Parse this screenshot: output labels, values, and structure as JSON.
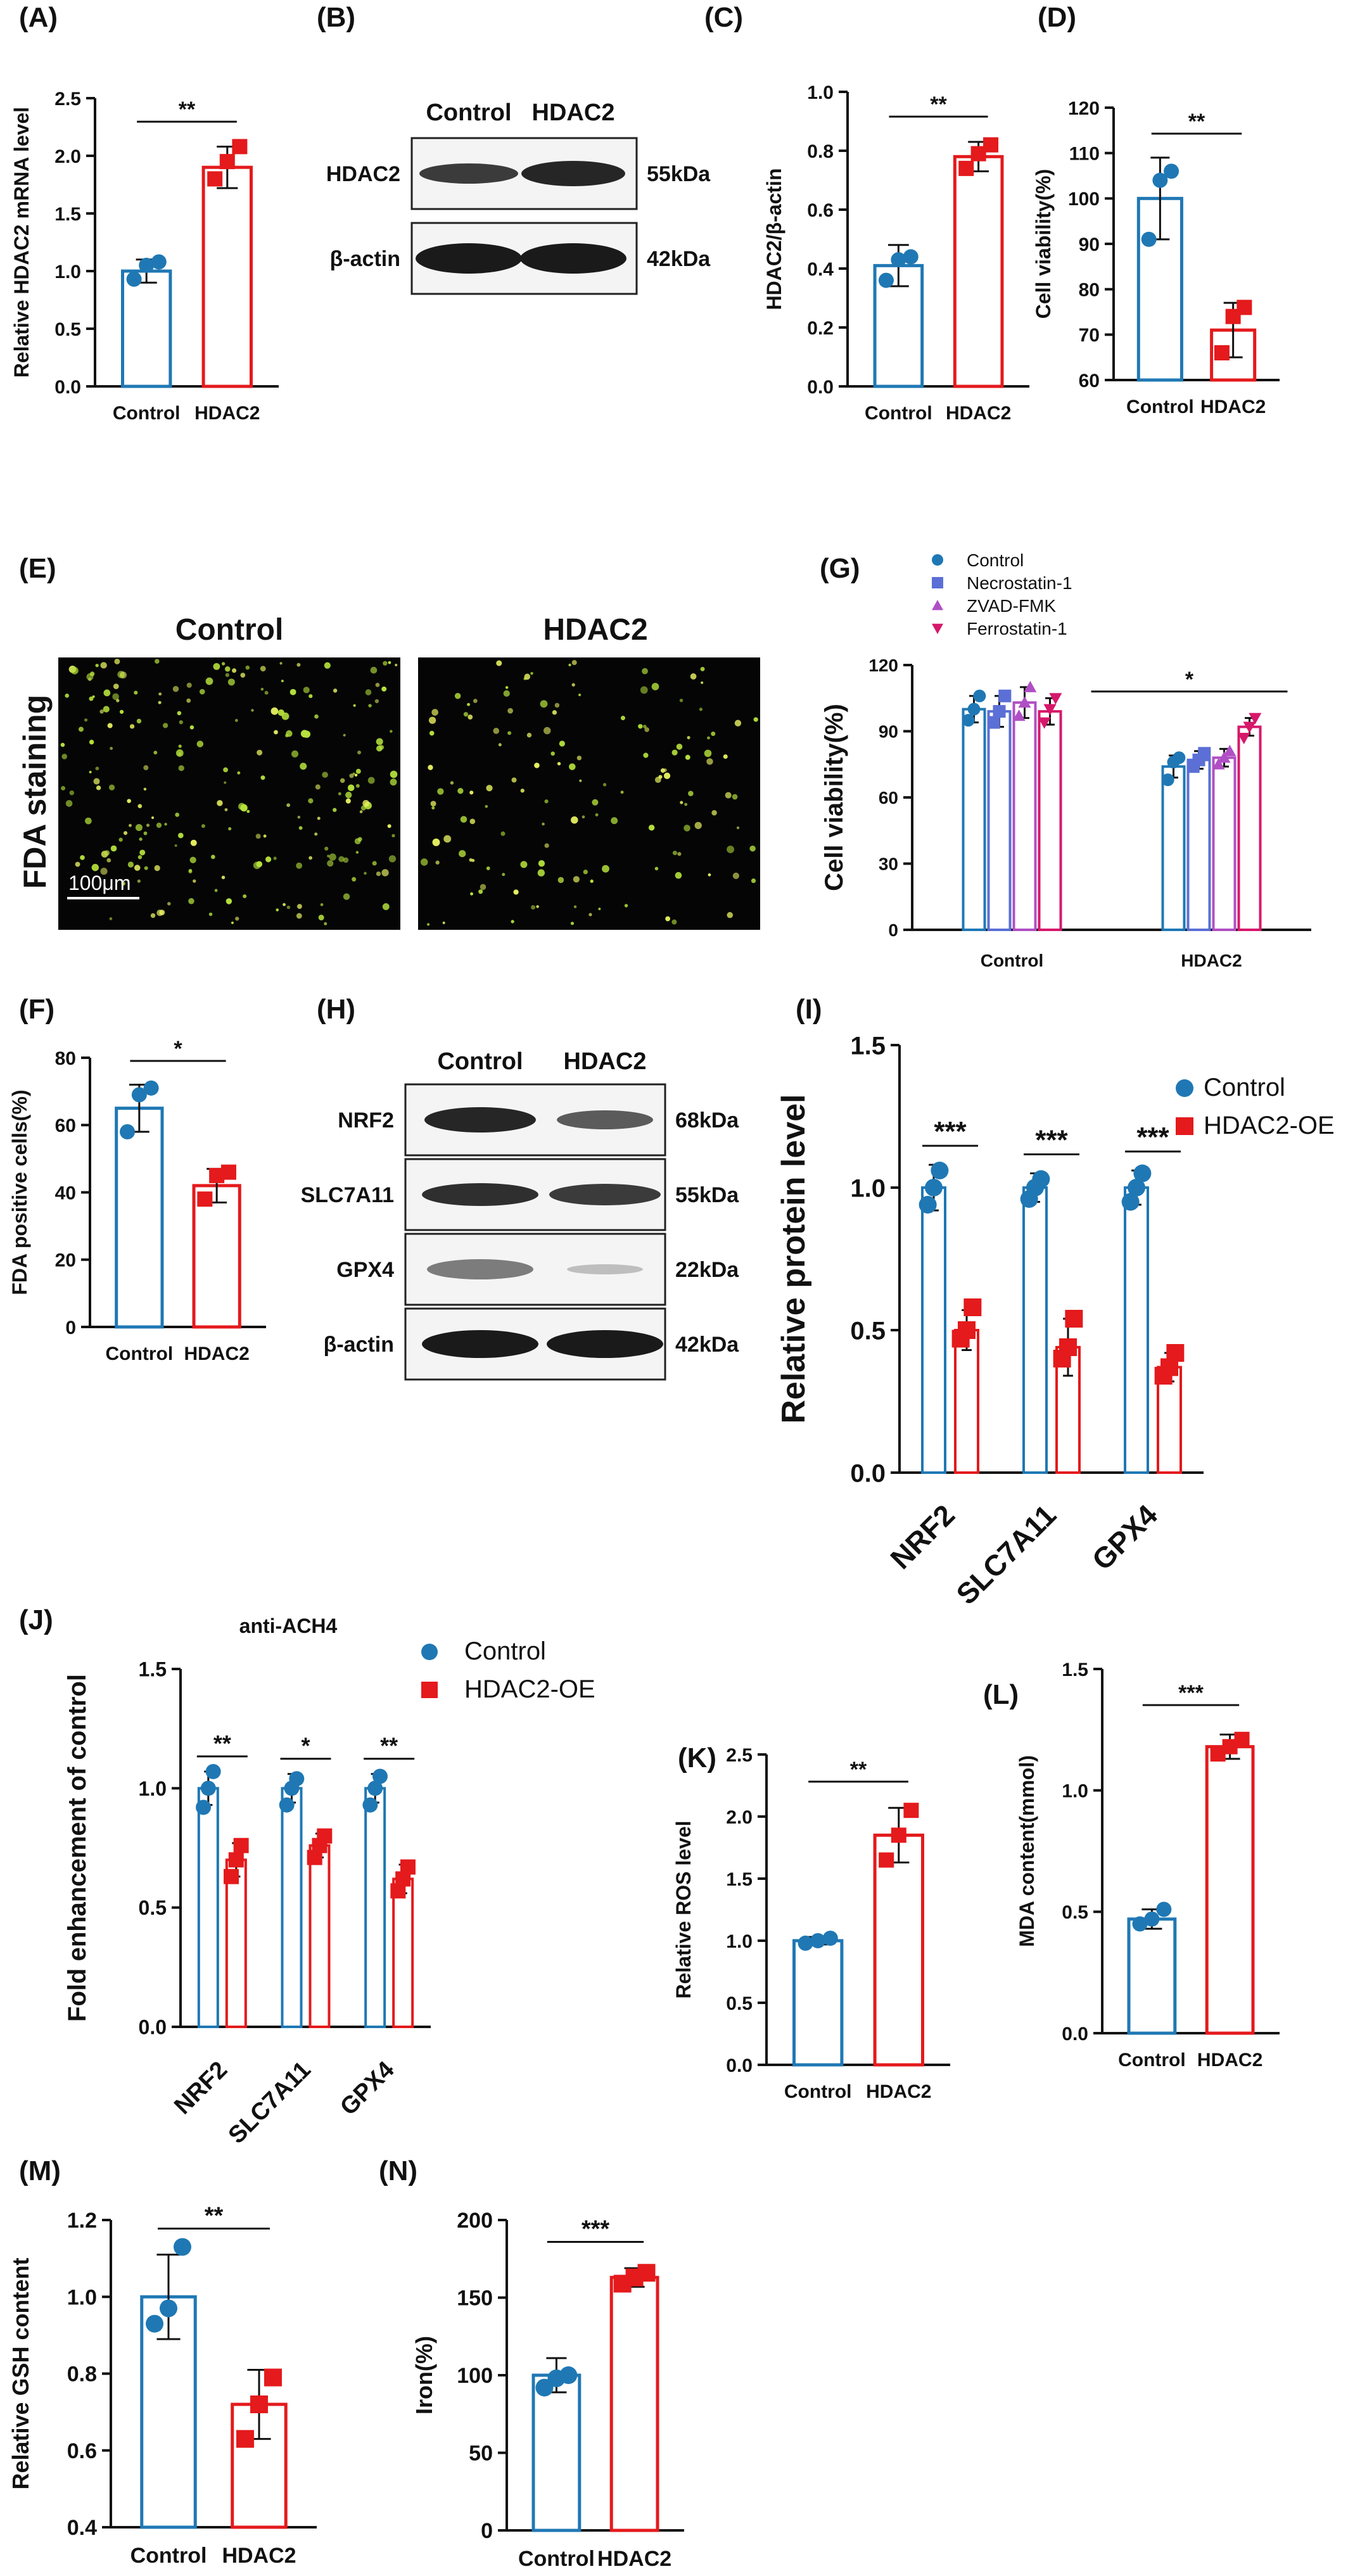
{
  "colors": {
    "control": "#1f78b4",
    "hdac2": "#e41a1c",
    "necrostatin": "#5b6fd6",
    "zvad": "#b04fc4",
    "ferrostatin": "#d6186a"
  },
  "chart_data": [
    {
      "panel": "(A)",
      "type": "bar",
      "ylabel": "Relative HDAC2 mRNA level",
      "ylim": [
        0,
        2.5
      ],
      "yticks": [
        "0.0",
        "0.5",
        "1.0",
        "1.5",
        "2.0",
        "2.5"
      ],
      "categories": [
        "Control",
        "HDAC2"
      ],
      "values": [
        1.0,
        1.9
      ],
      "errors": [
        0.1,
        0.18
      ],
      "points": [
        [
          0.93,
          1.05,
          1.08
        ],
        [
          1.8,
          1.95,
          2.08
        ]
      ],
      "significance": "**"
    },
    {
      "panel": "(C)",
      "type": "bar",
      "ylabel": "HDAC2/β-actin",
      "ylim": [
        0,
        1.0
      ],
      "yticks": [
        "0.0",
        "0.2",
        "0.4",
        "0.6",
        "0.8",
        "1.0"
      ],
      "categories": [
        "Control",
        "HDAC2"
      ],
      "values": [
        0.41,
        0.78
      ],
      "errors": [
        0.07,
        0.05
      ],
      "points": [
        [
          0.36,
          0.43,
          0.44
        ],
        [
          0.74,
          0.79,
          0.82
        ]
      ],
      "significance": "**"
    },
    {
      "panel": "(D)",
      "type": "bar",
      "ylabel": "Cell viability(%)",
      "ylim": [
        60,
        120
      ],
      "yticks": [
        "60",
        "70",
        "80",
        "90",
        "100",
        "110",
        "120"
      ],
      "categories": [
        "Control",
        "HDAC2"
      ],
      "values": [
        100,
        71
      ],
      "errors": [
        9,
        6
      ],
      "points": [
        [
          91,
          104,
          106
        ],
        [
          66,
          74,
          76
        ]
      ],
      "significance": "**"
    },
    {
      "panel": "(F)",
      "type": "bar",
      "ylabel": "FDA positive cells(%)",
      "ylim": [
        0,
        80
      ],
      "yticks": [
        "0",
        "20",
        "40",
        "60",
        "80"
      ],
      "categories": [
        "Control",
        "HDAC2"
      ],
      "values": [
        65,
        42
      ],
      "errors": [
        7,
        5
      ],
      "points": [
        [
          58,
          69,
          71
        ],
        [
          38,
          45,
          46
        ]
      ],
      "significance": "*"
    },
    {
      "panel": "(G)",
      "type": "bar",
      "ylabel": "Cell viability(%)",
      "ylim": [
        0,
        120
      ],
      "yticks": [
        "0",
        "30",
        "60",
        "90",
        "120"
      ],
      "categories": [
        "Control",
        "HDAC2"
      ],
      "series": [
        {
          "name": "Control",
          "values": [
            100,
            74
          ],
          "errors": [
            6,
            5
          ],
          "points": [
            [
              95,
              100,
              106
            ],
            [
              68,
              76,
              78
            ]
          ]
        },
        {
          "name": "Necrostatin-1",
          "values": [
            99,
            77
          ],
          "errors": [
            7,
            4
          ],
          "points": [
            [
              94,
              99,
              106
            ],
            [
              74,
              77,
              80
            ]
          ]
        },
        {
          "name": "ZVAD-FMK",
          "values": [
            103,
            78
          ],
          "errors": [
            7,
            4
          ],
          "points": [
            [
              97,
              103,
              110
            ],
            [
              75,
              78,
              81
            ]
          ]
        },
        {
          "name": "Ferrostatin-1",
          "values": [
            99,
            92
          ],
          "errors": [
            6,
            4
          ],
          "points": [
            [
              94,
              100,
              105
            ],
            [
              87,
              92,
              96
            ]
          ]
        }
      ],
      "significance": "*"
    },
    {
      "panel": "(I)",
      "type": "bar",
      "ylabel": "Relative protein level",
      "ylim": [
        0,
        1.5
      ],
      "yticks": [
        "0.0",
        "0.5",
        "1.0",
        "1.5"
      ],
      "categories": [
        "NRF2",
        "SLC7A11",
        "GPX4"
      ],
      "series": [
        {
          "name": "Control",
          "values": [
            1.0,
            1.0,
            1.0
          ],
          "errors": [
            0.08,
            0.05,
            0.06
          ],
          "points": [
            [
              0.94,
              1.0,
              1.06
            ],
            [
              0.96,
              1.0,
              1.03
            ],
            [
              0.95,
              1.0,
              1.05
            ]
          ]
        },
        {
          "name": "HDAC2-OE",
          "values": [
            0.5,
            0.44,
            0.37
          ],
          "errors": [
            0.07,
            0.1,
            0.05
          ],
          "points": [
            [
              0.47,
              0.5,
              0.58
            ],
            [
              0.4,
              0.44,
              0.54
            ],
            [
              0.34,
              0.37,
              0.42
            ]
          ]
        }
      ],
      "significance": [
        "***",
        "***",
        "***"
      ]
    },
    {
      "panel": "(J)",
      "type": "bar",
      "title": "anti-ACH4",
      "ylabel": "Fold enhancement of control",
      "ylim": [
        0,
        1.5
      ],
      "yticks": [
        "0.0",
        "0.5",
        "1.0",
        "1.5"
      ],
      "categories": [
        "NRF2",
        "SLC7A11",
        "GPX4"
      ],
      "series": [
        {
          "name": "Control",
          "values": [
            1.0,
            1.0,
            1.0
          ],
          "errors": [
            0.07,
            0.06,
            0.06
          ],
          "points": [
            [
              0.92,
              1.0,
              1.07
            ],
            [
              0.93,
              1.0,
              1.04
            ],
            [
              0.93,
              1.0,
              1.05
            ]
          ]
        },
        {
          "name": "HDAC2-OE",
          "values": [
            0.7,
            0.76,
            0.62
          ],
          "errors": [
            0.07,
            0.05,
            0.06
          ],
          "points": [
            [
              0.63,
              0.7,
              0.76
            ],
            [
              0.71,
              0.76,
              0.8
            ],
            [
              0.57,
              0.62,
              0.67
            ]
          ]
        }
      ],
      "significance": [
        "**",
        "*",
        "**"
      ]
    },
    {
      "panel": "(K)",
      "type": "bar",
      "ylabel": "Relative ROS level",
      "ylim": [
        0,
        2.5
      ],
      "yticks": [
        "0.0",
        "0.5",
        "1.0",
        "1.5",
        "2.0",
        "2.5"
      ],
      "categories": [
        "Control",
        "HDAC2"
      ],
      "values": [
        1.0,
        1.85
      ],
      "errors": [
        0.03,
        0.22
      ],
      "points": [
        [
          0.98,
          1.0,
          1.02
        ],
        [
          1.65,
          1.85,
          2.05
        ]
      ],
      "significance": "**"
    },
    {
      "panel": "(L)",
      "type": "bar",
      "ylabel": "MDA content(mmol)",
      "ylim": [
        0,
        1.5
      ],
      "yticks": [
        "0.0",
        "0.5",
        "1.0",
        "1.5"
      ],
      "categories": [
        "Control",
        "HDAC2"
      ],
      "values": [
        0.47,
        1.18
      ],
      "errors": [
        0.04,
        0.05
      ],
      "points": [
        [
          0.45,
          0.47,
          0.51
        ],
        [
          1.15,
          1.18,
          1.21
        ]
      ],
      "significance": "***"
    },
    {
      "panel": "(M)",
      "type": "bar",
      "ylabel": "Relative GSH content",
      "ylim": [
        0.4,
        1.2
      ],
      "yticks": [
        "0.4",
        "0.6",
        "0.8",
        "1.0",
        "1.2"
      ],
      "categories": [
        "Control",
        "HDAC2"
      ],
      "values": [
        1.0,
        0.72
      ],
      "errors": [
        0.11,
        0.09
      ],
      "points": [
        [
          0.93,
          0.97,
          1.13
        ],
        [
          0.63,
          0.72,
          0.79
        ]
      ],
      "significance": "**"
    },
    {
      "panel": "(N)",
      "type": "bar",
      "ylabel": "Iron(%)",
      "ylim": [
        0,
        200
      ],
      "yticks": [
        "0",
        "50",
        "100",
        "150",
        "200"
      ],
      "categories": [
        "Control",
        "HDAC2"
      ],
      "values": [
        100,
        163
      ],
      "errors": [
        11,
        6
      ],
      "points": [
        [
          92,
          98,
          100
        ],
        [
          159,
          163,
          166
        ]
      ],
      "significance": "***"
    }
  ],
  "panel_letters": [
    "(A)",
    "(B)",
    "(C)",
    "(D)",
    "(E)",
    "(F)",
    "(G)",
    "(H)",
    "(I)",
    "(J)",
    "(K)",
    "(L)",
    "(M)",
    "(N)"
  ],
  "western_B": {
    "columns": [
      "Control",
      "HDAC2"
    ],
    "rows": [
      {
        "name": "HDAC2",
        "kda": "55kDa"
      },
      {
        "name": "β-actin",
        "kda": "42kDa"
      }
    ]
  },
  "western_H": {
    "columns": [
      "Control",
      "HDAC2"
    ],
    "rows": [
      {
        "name": "NRF2",
        "kda": "68kDa"
      },
      {
        "name": "SLC7A11",
        "kda": "55kDa"
      },
      {
        "name": "GPX4",
        "kda": "22kDa"
      },
      {
        "name": "β-actin",
        "kda": "42kDa"
      }
    ]
  },
  "fda_E": {
    "columns": [
      "Control",
      "HDAC2"
    ],
    "side_label": "FDA staining",
    "scale_bar": "100μm"
  },
  "legend_I": [
    "Control",
    "HDAC2-OE"
  ],
  "legend_J": [
    "Control",
    "HDAC2-OE"
  ]
}
